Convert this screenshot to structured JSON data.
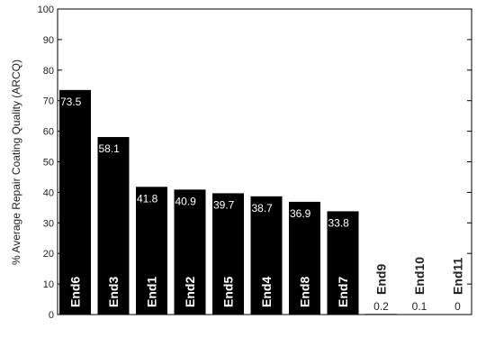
{
  "chart_data": {
    "type": "bar",
    "categories": [
      "End6",
      "End3",
      "End1",
      "End2",
      "End5",
      "End4",
      "End8",
      "End7",
      "End9",
      "End10",
      "End11"
    ],
    "values": [
      73.5,
      58.1,
      41.8,
      40.9,
      39.7,
      38.7,
      36.9,
      33.8,
      0.2,
      0.1,
      0
    ],
    "value_labels": [
      "73.5",
      "58.1",
      "41.8",
      "40.9",
      "39.7",
      "38.7",
      "36.9",
      "33.8",
      "0.2",
      "0.1",
      "0"
    ],
    "ylabel": "% Average Repair Coating Quality (ARCQ)",
    "xlabel": "",
    "ylim": [
      0,
      100
    ],
    "yticks": [
      0,
      10,
      20,
      30,
      40,
      50,
      60,
      70,
      80,
      90,
      100
    ],
    "grid": false,
    "bar_color": "#000000",
    "label_color_on_bar": "#ffffff",
    "label_color_off_bar": "#222222"
  }
}
